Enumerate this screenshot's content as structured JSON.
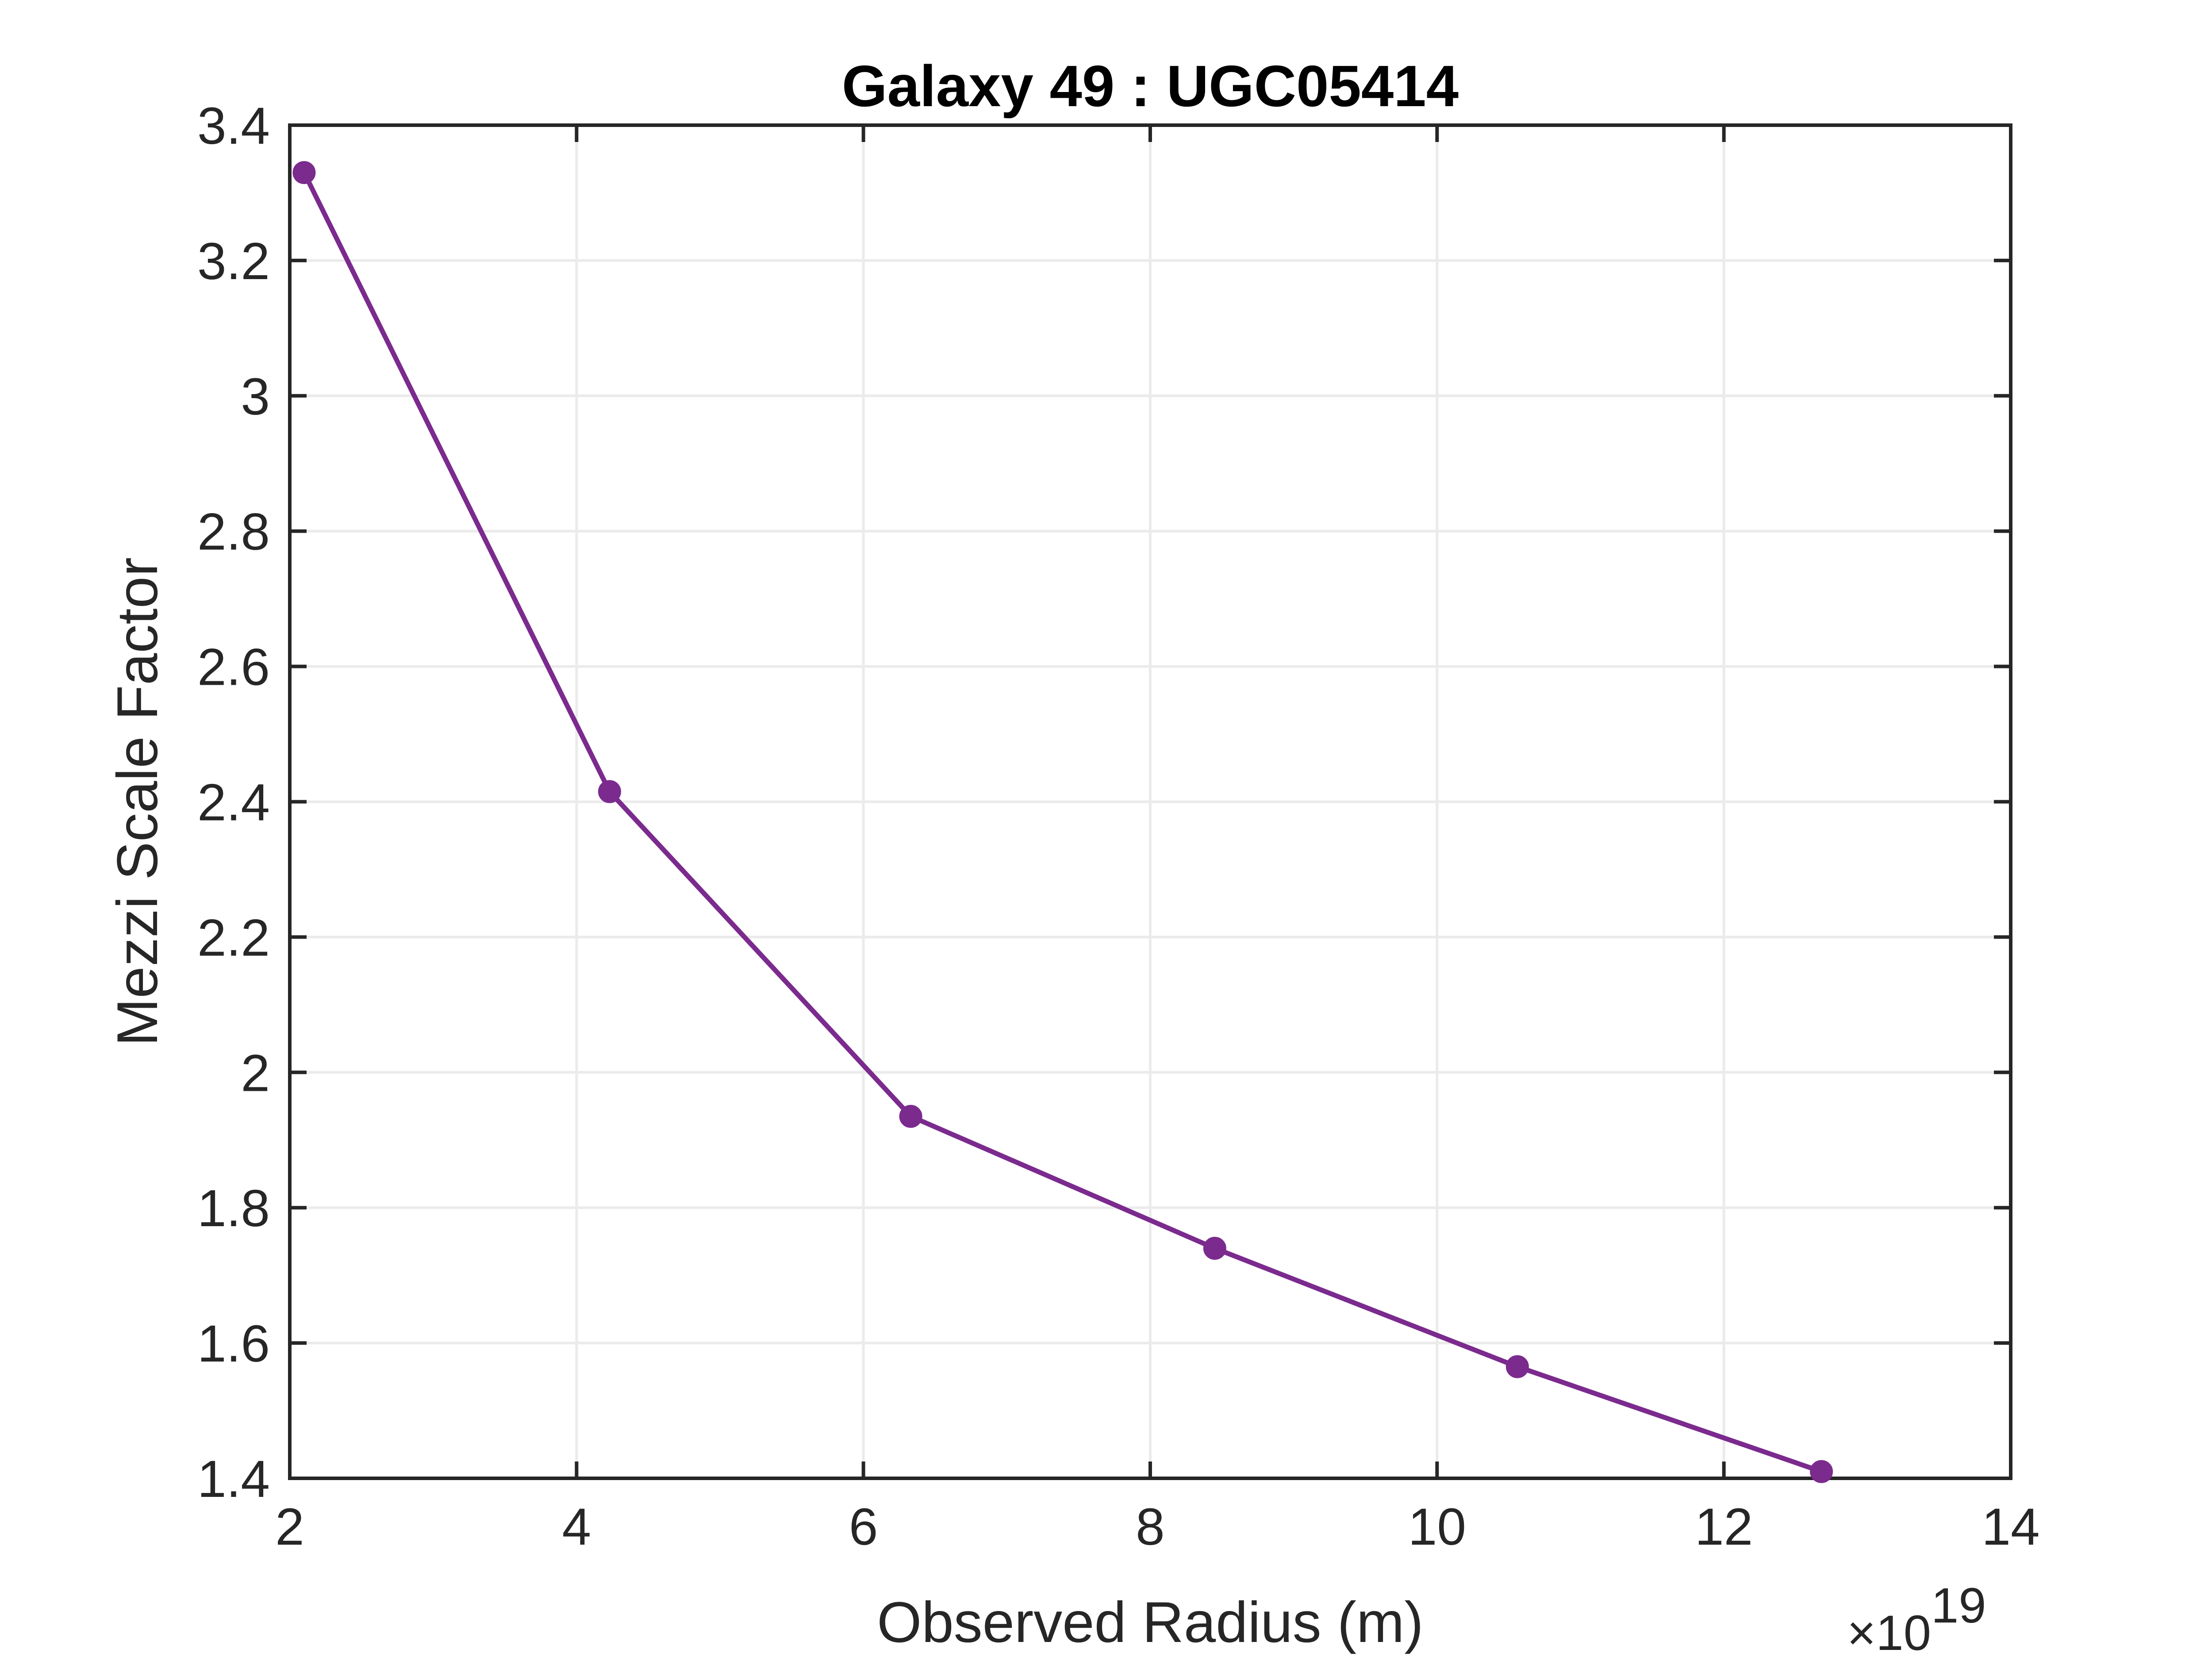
{
  "chart_data": {
    "type": "line",
    "title": "Galaxy 49 : UGC05414",
    "xlabel": "Observed Radius (m)",
    "ylabel": "Mezzi Scale Factor",
    "x_exponent_label": "×10",
    "x_exponent_power": "19",
    "xlim": [
      2,
      14
    ],
    "ylim": [
      1.4,
      3.4
    ],
    "x_ticks": [
      2,
      4,
      6,
      8,
      10,
      12,
      14
    ],
    "x_tick_labels": [
      "2",
      "4",
      "6",
      "8",
      "10",
      "12",
      "14"
    ],
    "y_ticks": [
      1.4,
      1.6,
      1.8,
      2.0,
      2.2,
      2.4,
      2.6,
      2.8,
      3.0,
      3.2,
      3.4
    ],
    "y_tick_labels": [
      "1.4",
      "1.6",
      "1.8",
      "2",
      "2.2",
      "2.4",
      "2.6",
      "2.8",
      "3",
      "3.2",
      "3.4"
    ],
    "grid": true,
    "series": [
      {
        "color": "#7B2A8E",
        "x": [
          2.1,
          4.23,
          6.33,
          8.45,
          10.56,
          12.68
        ],
        "y": [
          3.33,
          2.415,
          1.935,
          1.74,
          1.565,
          1.41
        ]
      }
    ]
  }
}
